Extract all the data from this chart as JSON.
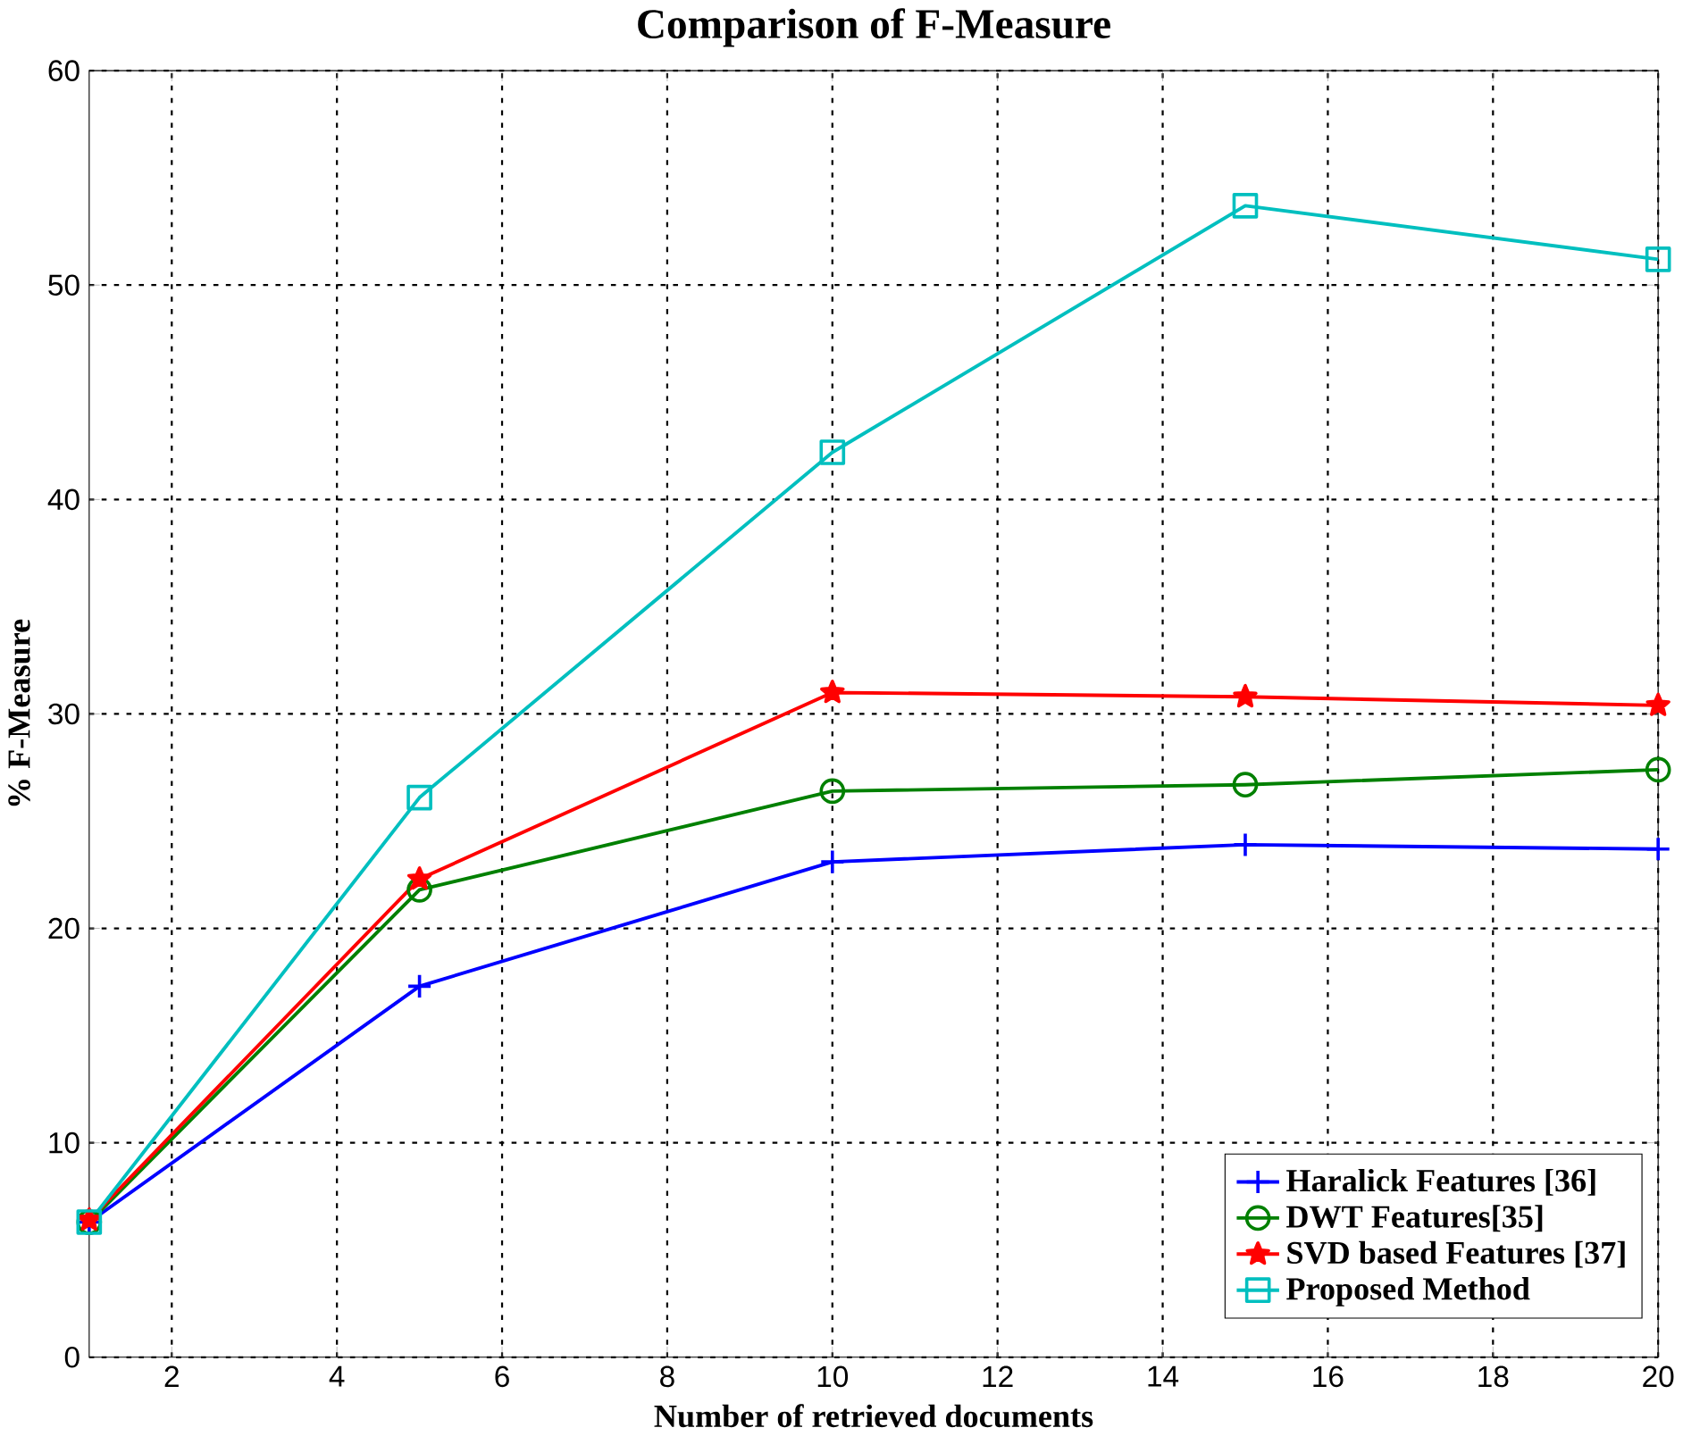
{
  "chart_data": {
    "type": "line",
    "title": "Comparison of F-Measure",
    "xlabel": "Number of retrieved documents",
    "ylabel": "% F-Measure",
    "x": [
      1,
      5,
      10,
      15,
      20
    ],
    "series": [
      {
        "name": "Haralick Features [36]",
        "color": "#0000ff",
        "marker": "cross",
        "values": [
          6.3,
          17.3,
          23.1,
          23.9,
          23.7
        ]
      },
      {
        "name": "DWT Features[35]",
        "color": "#008000",
        "marker": "circle",
        "values": [
          6.3,
          21.8,
          26.4,
          26.7,
          27.4
        ]
      },
      {
        "name": "SVD based Features [37]",
        "color": "#ff0000",
        "marker": "star",
        "values": [
          6.4,
          22.3,
          31.0,
          30.8,
          30.4
        ]
      },
      {
        "name": "Proposed Method",
        "color": "#00bfbf",
        "marker": "square",
        "values": [
          6.3,
          26.1,
          42.2,
          53.7,
          51.2
        ]
      }
    ],
    "xlim": [
      1,
      20
    ],
    "xticks": [
      2,
      4,
      6,
      8,
      10,
      12,
      14,
      16,
      18,
      20
    ],
    "ylim": [
      0,
      60
    ],
    "yticks": [
      0,
      10,
      20,
      30,
      40,
      50,
      60
    ],
    "grid": true,
    "legend": "bottom right",
    "line_style": "solid"
  }
}
